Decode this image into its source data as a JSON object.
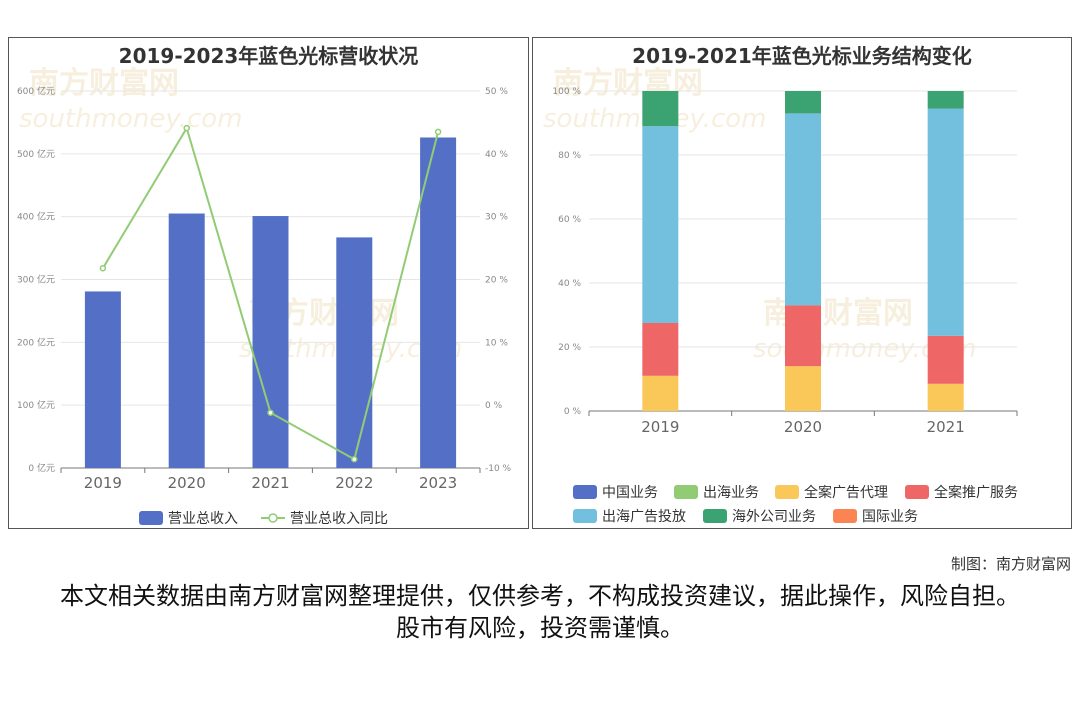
{
  "chart_data": [
    {
      "type": "bar",
      "title": "2019-2023年蓝色光标营收状况",
      "categories": [
        "2019",
        "2020",
        "2021",
        "2022",
        "2023"
      ],
      "y_left": {
        "ticks": [
          "0 亿元",
          "100 亿元",
          "200 亿元",
          "300 亿元",
          "400 亿元",
          "500 亿元",
          "600 亿元"
        ],
        "range": [
          0,
          600
        ]
      },
      "y_right": {
        "ticks": [
          "-10 %",
          "0 %",
          "10 %",
          "20 %",
          "30 %",
          "40 %",
          "50 %"
        ],
        "range": [
          -10,
          50
        ]
      },
      "series": [
        {
          "name": "营业总收入",
          "kind": "bar",
          "axis": "left",
          "color": "#5470c6",
          "values": [
            281,
            405,
            401,
            367,
            526
          ]
        },
        {
          "name": "营业总收入同比",
          "kind": "line",
          "axis": "right",
          "color": "#91cc75",
          "values": [
            21.8,
            44.1,
            -1.2,
            -8.6,
            43.5
          ]
        }
      ],
      "legend": "bottom"
    },
    {
      "type": "stacked_bar",
      "title": "2019-2021年蓝色光标业务结构变化",
      "categories": [
        "2019",
        "2020",
        "2021"
      ],
      "y": {
        "ticks": [
          "0 %",
          "20 %",
          "40 %",
          "60 %",
          "80 %",
          "100 %"
        ],
        "range": [
          0,
          100
        ]
      },
      "legend_row1": [
        "中国业务",
        "出海业务",
        "全案广告代理",
        "全案推广服务"
      ],
      "legend_row2": [
        "出海广告投放",
        "海外公司业务",
        "国际业务"
      ],
      "series": [
        {
          "name": "中国业务",
          "color": "#5470c6",
          "values": [
            0,
            0,
            0
          ]
        },
        {
          "name": "出海业务",
          "color": "#91cc75",
          "values": [
            0,
            0,
            0
          ]
        },
        {
          "name": "全案广告代理",
          "color": "#fac858",
          "values": [
            11,
            14,
            8.5
          ]
        },
        {
          "name": "全案推广服务",
          "color": "#ee6666",
          "values": [
            16.5,
            19,
            15
          ]
        },
        {
          "name": "出海广告投放",
          "color": "#73c0de",
          "values": [
            61.5,
            60,
            71
          ]
        },
        {
          "name": "海外公司业务",
          "color": "#3ba272",
          "values": [
            11,
            7,
            5.5
          ]
        },
        {
          "name": "国际业务",
          "color": "#fc8452",
          "values": [
            0,
            0,
            0
          ]
        }
      ],
      "legend": "bottom"
    }
  ],
  "footer": {
    "credit": "制图：南方财富网",
    "disclaimer": "本文相关数据由南方财富网整理提供，仅供参考，不构成投资建议，据此操作，风险自担。股市有风险，投资需谨慎。"
  },
  "watermark": {
    "cn": "南方财富网",
    "en": "southmoney.com"
  }
}
